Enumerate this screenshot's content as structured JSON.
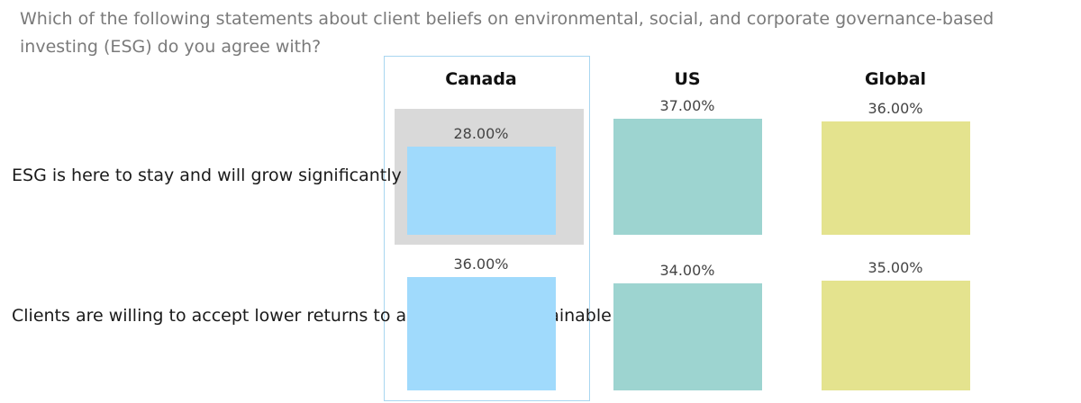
{
  "question": "Which of the following statements about client beliefs on environmental, social, and corporate governance-based investing (ESG) do you agree with?",
  "colors": {
    "Canada": "#a0dafc",
    "US": "#9dd4d0",
    "Global": "#e4e38e",
    "highlight": "#d9d9d9",
    "highlight_border": "#a9d6f0"
  },
  "chart_data": {
    "type": "bar",
    "columns": [
      "Canada",
      "US",
      "Global"
    ],
    "rows": [
      "ESG is here to stay and will grow significantly",
      "Clients are willing to accept lower returns to achieve their sustainable investing goals"
    ],
    "series": [
      {
        "name": "Canada",
        "values": [
          28.0,
          36.0
        ],
        "labels": [
          "28.00%",
          "36.00%"
        ]
      },
      {
        "name": "US",
        "values": [
          37.0,
          34.0
        ],
        "labels": [
          "37.00%",
          "34.00%"
        ]
      },
      {
        "name": "Global",
        "values": [
          36.0,
          35.0
        ],
        "labels": [
          "36.00%",
          "35.00%"
        ]
      }
    ],
    "highlight": {
      "column": "Canada",
      "row": 0
    }
  }
}
